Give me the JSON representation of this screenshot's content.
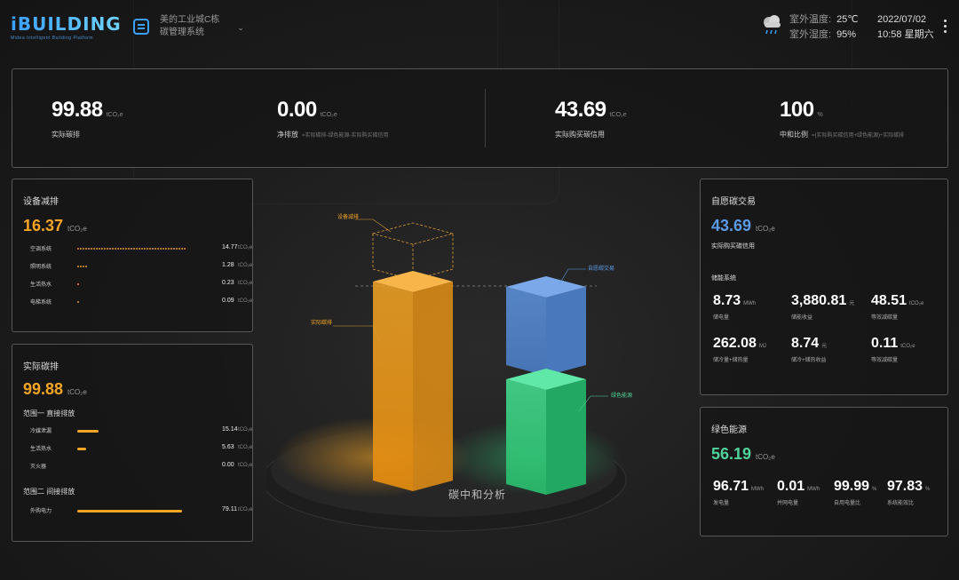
{
  "header": {
    "logo": "iBUILDING",
    "logo_sub": "Midea Intelligent Building Platform",
    "project_name": "美的工业城C栋",
    "system_name": "碳管理系统",
    "weather": {
      "temp_label": "室外温度:",
      "temp_value": "25℃",
      "humidity_label": "室外湿度:",
      "humidity_value": "95%"
    },
    "date": "2022/07/02",
    "time_weekday": "10:58 星期六"
  },
  "kpis": [
    {
      "value": "99.88",
      "unit": "tCO₂e",
      "label": "实际碳排",
      "note": ""
    },
    {
      "value": "0.00",
      "unit": "tCO₂e",
      "label": "净排放",
      "note": "=实际碳排-绿色能源-实际购买碳信用"
    },
    {
      "value": "43.69",
      "unit": "tCO₂e",
      "label": "实际购买碳信用",
      "note": ""
    },
    {
      "value": "100",
      "unit": "%",
      "label": "中和比例",
      "note": "=(实际购买碳信用+绿色能源)÷实际碳排"
    }
  ],
  "equipment": {
    "title": "设备减排",
    "total": "16.37",
    "unit": "tCO₂e",
    "rows": [
      {
        "label": "空调系统",
        "value": "14.77",
        "unit": "tCO₂e",
        "ratio": 0.9
      },
      {
        "label": "照明系统",
        "value": "1.28",
        "unit": "tCO₂e",
        "ratio": 0.08
      },
      {
        "label": "生活热水",
        "value": "0.23",
        "unit": "tCO₂e",
        "ratio": 0.015
      },
      {
        "label": "电梯系统",
        "value": "0.09",
        "unit": "tCO₂e",
        "ratio": 0.008
      }
    ]
  },
  "actual": {
    "title": "实际碳排",
    "total": "99.88",
    "unit": "tCO₂e",
    "scope1_title": "范围一 直接排放",
    "scope1": [
      {
        "label": "冷媒泄漏",
        "value": "15.14",
        "unit": "tCO₂e",
        "ratio": 0.18
      },
      {
        "label": "生活热水",
        "value": "5.63",
        "unit": "tCO₂e",
        "ratio": 0.07
      },
      {
        "label": "灭火器",
        "value": "0.00",
        "unit": "tCO₂e",
        "ratio": 0
      }
    ],
    "scope2_title": "范围二 间接排放",
    "scope2": [
      {
        "label": "外购电力",
        "value": "79.11",
        "unit": "tCO₂e",
        "ratio": 0.87
      }
    ]
  },
  "center": {
    "title": "碳中和分析",
    "callouts": {
      "equipment": "设备减排",
      "actual": "实际碳排",
      "carbon_trade": "自愿碳交易",
      "green": "绿色能源"
    }
  },
  "trade": {
    "title": "自愿碳交易",
    "total": "43.69",
    "unit": "tCO₂e",
    "subtitle": "实际购买碳信用",
    "section": "储能系统",
    "cells": [
      {
        "value": "8.73",
        "unit": "MWh",
        "label": "储电量"
      },
      {
        "value": "3,880.81",
        "unit": "元",
        "label": "储能收益"
      },
      {
        "value": "48.51",
        "unit": "tCO₂e",
        "label": "等效减碳量"
      },
      {
        "value": "262.08",
        "unit": "MJ",
        "label": "储冷量+储热量"
      },
      {
        "value": "8.74",
        "unit": "元",
        "label": "储冷+储热收益"
      },
      {
        "value": "0.11",
        "unit": "tCO₂e",
        "label": "等效减碳量"
      }
    ]
  },
  "green": {
    "title": "绿色能源",
    "total": "56.19",
    "unit": "tCO₂e",
    "cells": [
      {
        "value": "96.71",
        "unit": "MWh",
        "label": "发电量"
      },
      {
        "value": "0.01",
        "unit": "MWh",
        "label": "并网电量"
      },
      {
        "value": "99.99",
        "unit": "%",
        "label": "自用电量比"
      },
      {
        "value": "97.83",
        "unit": "%",
        "label": "系统能效比"
      }
    ]
  },
  "colors": {
    "orange": "#f5a524",
    "blue": "#5b9ae6",
    "green": "#4fd39a"
  }
}
